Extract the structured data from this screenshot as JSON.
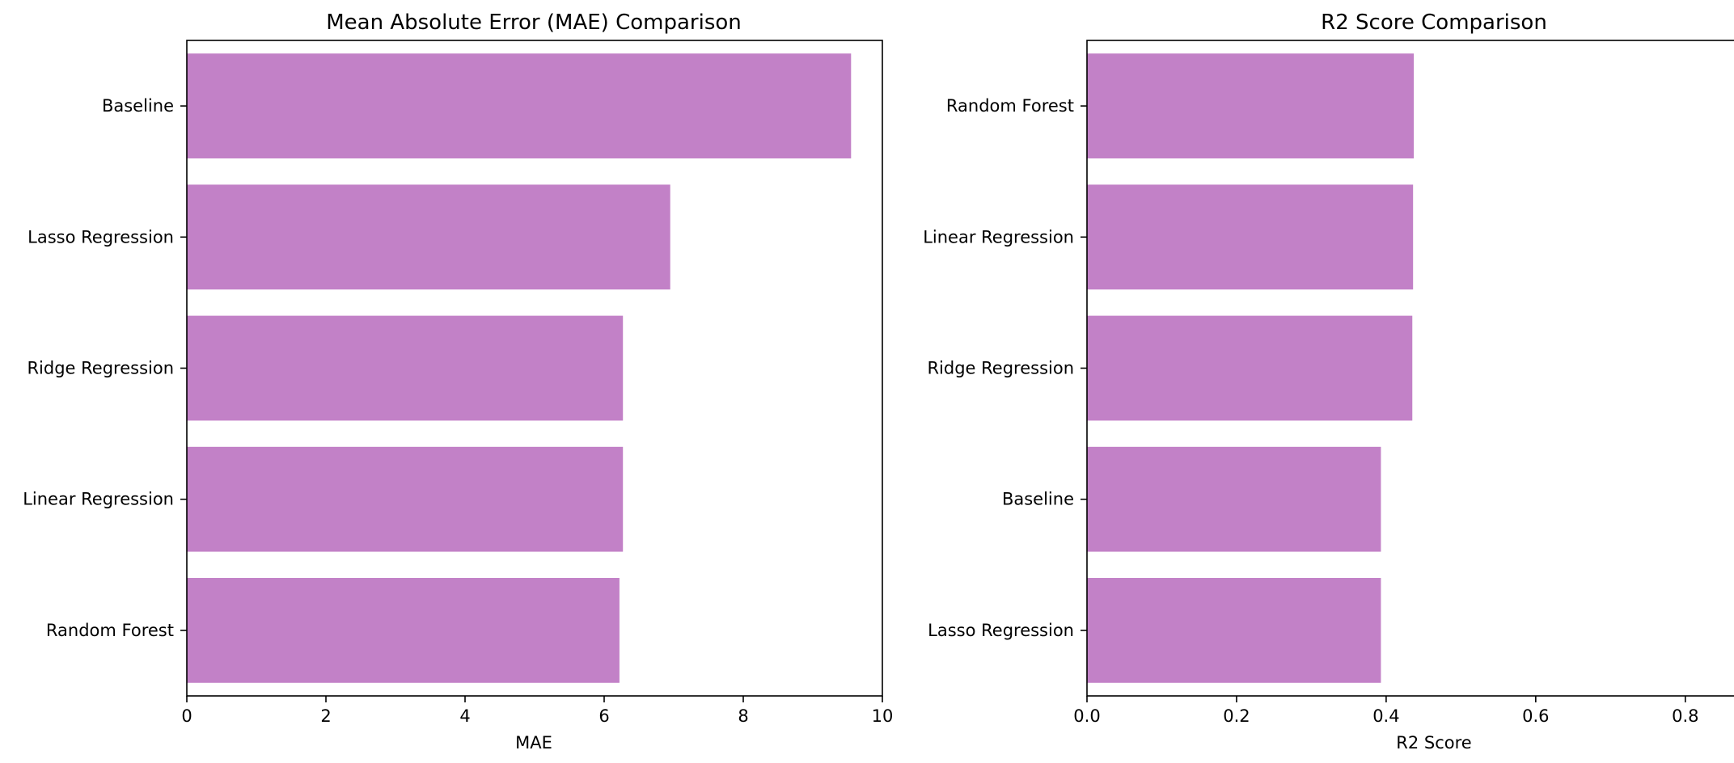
{
  "chart_data": [
    {
      "type": "bar",
      "orientation": "horizontal",
      "title": "Mean Absolute Error (MAE) Comparison",
      "xlabel": "MAE",
      "ylabel": "",
      "categories": [
        "Baseline",
        "Lasso Regression",
        "Ridge Regression",
        "Linear Regression",
        "Random Forest"
      ],
      "values": [
        9.55,
        6.95,
        6.27,
        6.27,
        6.22
      ],
      "xlim": [
        0,
        10
      ],
      "xticks": [
        "0",
        "2",
        "4",
        "6",
        "8",
        "10"
      ],
      "grid": false,
      "legend": "none",
      "bar_color": "#c281c7"
    },
    {
      "type": "bar",
      "orientation": "horizontal",
      "title": "R2 Score Comparison",
      "xlabel": "R2 Score",
      "ylabel": "",
      "categories": [
        "Random Forest",
        "Linear Regression",
        "Ridge Regression",
        "Baseline",
        "Lasso Regression"
      ],
      "values": [
        0.437,
        0.436,
        0.435,
        0.393,
        0.393
      ],
      "xlim": [
        0,
        0.93
      ],
      "xticks": [
        "0.0",
        "0.2",
        "0.4",
        "0.6",
        "0.8"
      ],
      "grid": false,
      "legend": "none",
      "bar_color": "#c281c7"
    }
  ]
}
